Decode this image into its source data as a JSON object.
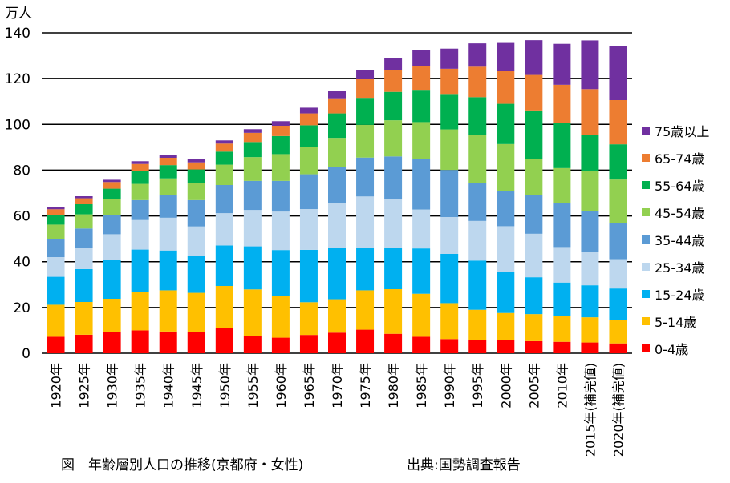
{
  "chart_data": {
    "type": "bar",
    "stacked": true,
    "unit_label": "万人",
    "ylim": [
      0,
      140
    ],
    "yticks": [
      0,
      20,
      40,
      60,
      80,
      100,
      120,
      140
    ],
    "grid": true,
    "legend_position": "right",
    "categories": [
      "1920年",
      "1925年",
      "1930年",
      "1935年",
      "1940年",
      "1945年",
      "1950年",
      "1955年",
      "1960年",
      "1965年",
      "1970年",
      "1975年",
      "1980年",
      "1985年",
      "1990年",
      "1995年",
      "2000年",
      "2005年",
      "2010年",
      "2015年(補完値)",
      "2020年(補完値)"
    ],
    "series": [
      {
        "name": "0-4歳",
        "color": "#ff0000",
        "values": [
          7.2,
          8.1,
          9.2,
          10.0,
          9.5,
          9.2,
          11.0,
          7.5,
          6.8,
          8.0,
          9.0,
          10.3,
          8.5,
          7.2,
          6.2,
          5.7,
          5.6,
          5.3,
          5.0,
          4.7,
          4.3
        ]
      },
      {
        "name": "5-14歳",
        "color": "#ffc000",
        "values": [
          14.0,
          14.3,
          14.6,
          16.8,
          18.0,
          17.2,
          18.4,
          20.4,
          18.3,
          14.3,
          14.6,
          17.2,
          19.5,
          18.8,
          15.7,
          13.3,
          12.0,
          11.8,
          11.3,
          11.0,
          10.4
        ]
      },
      {
        "name": "15-24歳",
        "color": "#00b0f0",
        "values": [
          12.2,
          14.4,
          17.1,
          18.5,
          17.4,
          16.3,
          17.7,
          18.8,
          20.0,
          22.9,
          22.4,
          18.4,
          18.1,
          19.8,
          21.5,
          21.5,
          18.1,
          16.1,
          14.6,
          14.0,
          13.6
        ]
      },
      {
        "name": "25-34歳",
        "color": "#bdd7ee",
        "values": [
          8.6,
          9.4,
          11.1,
          12.9,
          14.3,
          12.7,
          14.1,
          15.9,
          16.8,
          17.8,
          19.6,
          22.6,
          21.1,
          17.0,
          16.1,
          17.3,
          19.8,
          19.0,
          15.5,
          14.4,
          12.8
        ]
      },
      {
        "name": "35-44歳",
        "color": "#5b9bd5",
        "values": [
          7.8,
          8.3,
          8.4,
          8.7,
          10.1,
          11.5,
          12.3,
          12.7,
          13.4,
          15.2,
          15.8,
          17.0,
          18.8,
          22.0,
          20.6,
          16.4,
          15.5,
          16.8,
          19.1,
          18.2,
          15.7
        ]
      },
      {
        "name": "45-54歳",
        "color": "#92d050",
        "values": [
          6.4,
          6.2,
          6.9,
          7.1,
          7.1,
          7.4,
          8.9,
          10.4,
          11.7,
          12.1,
          12.7,
          14.3,
          15.8,
          16.2,
          17.7,
          21.3,
          20.4,
          15.9,
          15.4,
          17.2,
          19.1
        ]
      },
      {
        "name": "55-64歳",
        "color": "#00b050",
        "values": [
          4.2,
          4.4,
          4.6,
          5.6,
          5.8,
          6.0,
          5.7,
          6.6,
          7.9,
          9.3,
          10.7,
          11.8,
          12.4,
          14.1,
          15.5,
          16.4,
          17.6,
          21.2,
          19.6,
          15.9,
          15.4
        ]
      },
      {
        "name": "65-74歳",
        "color": "#ed7d31",
        "values": [
          2.5,
          2.6,
          2.9,
          3.1,
          3.2,
          3.1,
          3.5,
          4.0,
          4.5,
          5.2,
          6.6,
          8.1,
          9.4,
          10.3,
          11.0,
          13.3,
          14.2,
          15.5,
          16.8,
          20.0,
          19.3
        ]
      },
      {
        "name": "75歳以上",
        "color": "#7030a0",
        "values": [
          0.8,
          0.9,
          1.0,
          1.2,
          1.3,
          1.3,
          1.4,
          1.6,
          2.0,
          2.5,
          3.4,
          4.1,
          5.3,
          6.9,
          8.8,
          10.2,
          12.4,
          15.2,
          17.9,
          21.3,
          23.6
        ]
      }
    ]
  },
  "caption": "図　年齢層別人口の推移(京都府・女性)",
  "source": "出典:国勢調査報告"
}
